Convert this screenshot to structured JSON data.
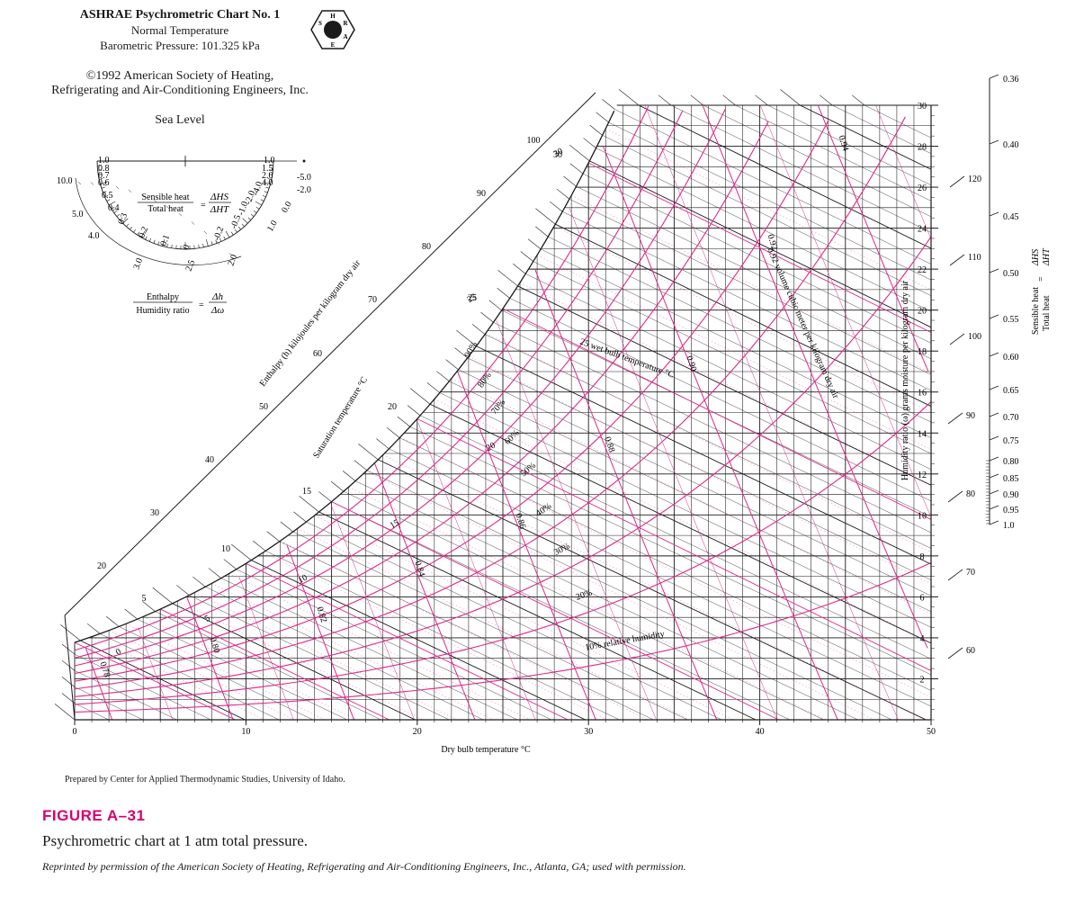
{
  "header": {
    "title": "ASHRAE Psychrometric Chart No. 1",
    "subtitle1": "Normal Temperature",
    "subtitle2": "Barometric Pressure: 101.325 kPa",
    "copyright1": "©1992 American Society of Heating,",
    "copyright2": "Refrigerating and Air-Conditioning Engineers, Inc.",
    "sea_level": "Sea Level",
    "logo_letters": [
      "H",
      "R",
      "A",
      "E",
      "S"
    ]
  },
  "protractor": {
    "sensible_label": "Sensible heat",
    "total_label": "Total heat",
    "eq": "=",
    "dhs": "ΔHS",
    "dht": "ΔHT",
    "enthalpy_label": "Enthalpy",
    "humidity_label": "Humidity ratio",
    "dh": "Δh",
    "dw": "Δω",
    "outer_ticks_left": [
      "1.0",
      "0.8",
      "0.7",
      "0.6",
      "0.5",
      "0.4",
      "0.3",
      "0.2",
      "0.1",
      "0"
    ],
    "outer_ticks_right": [
      "1.0",
      "1.5",
      "2.0",
      "4.0",
      "-4.0",
      "-2.0",
      "-1.0",
      "-0.5",
      "-0.2"
    ],
    "far_right": [
      "-5.0",
      "-2.0",
      "0.0",
      "1.0"
    ],
    "inner_left": [
      "10.0",
      "5.0",
      "4.0",
      "3.0",
      "2.5",
      "2.0"
    ]
  },
  "chart_data": {
    "type": "line",
    "title": "ASHRAE Psychrometric Chart No. 1",
    "xlabel": "Dry bulb temperature °C",
    "ylabel": "Humidity ratio (ω) grams moisture per kilogram dry air",
    "xlim": [
      0,
      50
    ],
    "ylim": [
      0,
      30
    ],
    "x_ticks": [
      "0",
      "10",
      "20",
      "30",
      "40",
      "50"
    ],
    "y_ticks": [
      "2",
      "4",
      "6",
      "8",
      "10",
      "12",
      "14",
      "16",
      "18",
      "20",
      "22",
      "24",
      "26",
      "28",
      "30"
    ],
    "rh_series": [
      {
        "rh": 90,
        "label": "90%"
      },
      {
        "rh": 80,
        "label": "80%"
      },
      {
        "rh": 70,
        "label": "70%"
      },
      {
        "rh": 60,
        "label": "60%"
      },
      {
        "rh": 50,
        "label": "50%"
      },
      {
        "rh": 40,
        "label": "40%"
      },
      {
        "rh": 30,
        "label": "30%"
      },
      {
        "rh": 20,
        "label": "20%"
      },
      {
        "rh": 10,
        "label": "10% relative humidity"
      }
    ],
    "wet_bulb_labels": [
      "0",
      "5",
      "10",
      "15",
      "20",
      "25",
      "30"
    ],
    "wet_bulb_text": "25 wet bulb temperature °C",
    "saturation_labels": [
      "5",
      "10",
      "15",
      "20",
      "25",
      "30"
    ],
    "saturation_text": "Saturation temperature °C",
    "enthalpy_labels": [
      "20",
      "30",
      "40",
      "50",
      "60",
      "70",
      "80",
      "90",
      "100",
      "110",
      "120"
    ],
    "enthalpy_axis_left": "Enthalpy (h) kilojoules per kilogram dry air",
    "enthalpy_right_ticks": [
      "120",
      "110",
      "100",
      "90",
      "80",
      "70",
      "60"
    ],
    "volume_labels": [
      "0.78",
      "0.80",
      "0.82",
      "0.84",
      "0.86",
      "0.88",
      "0.90",
      "0.92",
      "0.94"
    ],
    "volume_text": "0.92 volume cubic meter per kilogram dry air",
    "shr_scale": [
      "0.36",
      "0.40",
      "0.45",
      "0.50",
      "0.55",
      "0.60",
      "0.65",
      "0.70",
      "0.75",
      "0.80",
      "0.85",
      "0.90",
      "0.95",
      "1.0"
    ],
    "shr_label_top": "Sensible heat",
    "shr_label_bottom": "Total heat",
    "shr_ratio_top": "ΔHS",
    "shr_ratio_bottom": "ΔHT",
    "colors": {
      "rh": "#e0288a",
      "grid": "#1a1a1a",
      "enthalpy": "#1a1a1a",
      "volume": "#e0288a"
    }
  },
  "footer": {
    "prepared": "Prepared by Center for Applied Thermodynamic Studies, University of Idaho.",
    "figure": "FIGURE A–31",
    "caption": "Psychrometric chart at 1 atm total pressure.",
    "credit": "Reprinted by permission of the American Society of Heating, Refrigerating and Air-Conditioning Engineers, Inc., Atlanta, GA; used with permission."
  }
}
